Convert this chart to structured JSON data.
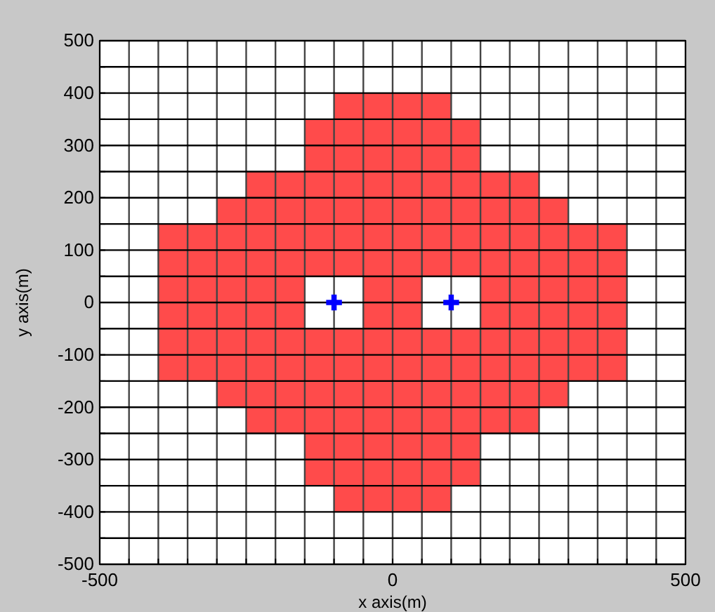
{
  "chart_data": {
    "type": "scatter",
    "xlabel": "x axis(m)",
    "ylabel": "y axis(m)",
    "xlim": [
      -500,
      500
    ],
    "ylim": [
      -500,
      500
    ],
    "xticks": [
      -500,
      {
        "value": -450,
        "label": null
      },
      {
        "value": -400,
        "label": null
      },
      {
        "value": -350,
        "label": null
      },
      {
        "value": -300,
        "label": null
      },
      {
        "value": -250,
        "label": null
      },
      {
        "value": -200,
        "label": null
      },
      {
        "value": -150,
        "label": null
      },
      {
        "value": -100,
        "label": null
      },
      {
        "value": -50,
        "label": null
      },
      0,
      {
        "value": 50,
        "label": null
      },
      {
        "value": 100,
        "label": null
      },
      {
        "value": 150,
        "label": null
      },
      {
        "value": 200,
        "label": null
      },
      {
        "value": 250,
        "label": null
      },
      {
        "value": 300,
        "label": null
      },
      {
        "value": 350,
        "label": null
      },
      {
        "value": 400,
        "label": null
      },
      {
        "value": 450,
        "label": null
      },
      500
    ],
    "yticks": [
      -500,
      {
        "value": -450,
        "label": null
      },
      -400,
      {
        "value": -350,
        "label": null
      },
      -300,
      {
        "value": -250,
        "label": null
      },
      -200,
      {
        "value": -150,
        "label": null
      },
      -100,
      {
        "value": -50,
        "label": null
      },
      0,
      {
        "value": 50,
        "label": null
      },
      100,
      {
        "value": 150,
        "label": null
      },
      200,
      {
        "value": 250,
        "label": null
      },
      300,
      {
        "value": 350,
        "label": null
      },
      400,
      {
        "value": 450,
        "label": null
      },
      500
    ],
    "grid": true,
    "series": [
      {
        "color": "#ff4b4b",
        "marker": "square",
        "x": [
          -75,
          -25,
          25,
          75,
          -125,
          -75,
          -25,
          25,
          75,
          125,
          -125,
          -75,
          -25,
          25,
          75,
          125,
          -225,
          -175,
          -125,
          -75,
          -25,
          25,
          75,
          125,
          175,
          225,
          -275,
          -225,
          -175,
          -125,
          -75,
          -25,
          25,
          75,
          125,
          175,
          225,
          275,
          -375,
          -325,
          -275,
          -225,
          -175,
          -125,
          -75,
          -25,
          25,
          75,
          125,
          175,
          225,
          275,
          325,
          375,
          -375,
          -325,
          -275,
          -225,
          -175,
          -125,
          -75,
          -25,
          25,
          75,
          125,
          175,
          225,
          275,
          325,
          375,
          -375,
          -325,
          -275,
          -225,
          -175,
          -25,
          25,
          175,
          225,
          275,
          325,
          375,
          -375,
          -325,
          -275,
          -225,
          -175,
          -25,
          25,
          175,
          225,
          275,
          325,
          375,
          -375,
          -325,
          -275,
          -225,
          -175,
          -125,
          -75,
          -25,
          25,
          75,
          125,
          175,
          225,
          275,
          325,
          375,
          -375,
          -325,
          -275,
          -225,
          -175,
          -125,
          -75,
          -25,
          25,
          75,
          125,
          175,
          225,
          275,
          325,
          375,
          -275,
          -225,
          -175,
          -125,
          -75,
          -25,
          25,
          75,
          125,
          175,
          225,
          275,
          -225,
          -175,
          -125,
          -75,
          -25,
          25,
          75,
          125,
          175,
          225,
          -125,
          -75,
          -25,
          25,
          75,
          125,
          -125,
          -75,
          -25,
          25,
          75,
          125,
          -75,
          -25,
          25,
          75
        ],
        "values": [
          375,
          375,
          375,
          375,
          325,
          325,
          325,
          325,
          325,
          325,
          275,
          275,
          275,
          275,
          275,
          275,
          225,
          225,
          225,
          225,
          225,
          225,
          225,
          225,
          225,
          225,
          175,
          175,
          175,
          175,
          175,
          175,
          175,
          175,
          175,
          175,
          175,
          175,
          125,
          125,
          125,
          125,
          125,
          125,
          125,
          125,
          125,
          125,
          125,
          125,
          125,
          125,
          125,
          125,
          75,
          75,
          75,
          75,
          75,
          75,
          75,
          75,
          75,
          75,
          75,
          75,
          75,
          75,
          75,
          75,
          25,
          25,
          25,
          25,
          25,
          25,
          25,
          25,
          25,
          25,
          25,
          25,
          -25,
          -25,
          -25,
          -25,
          -25,
          -25,
          -25,
          -25,
          -25,
          -25,
          -25,
          -25,
          -75,
          -75,
          -75,
          -75,
          -75,
          -75,
          -75,
          -75,
          -75,
          -75,
          -75,
          -75,
          -75,
          -75,
          -75,
          -75,
          -125,
          -125,
          -125,
          -125,
          -125,
          -125,
          -125,
          -125,
          -125,
          -125,
          -125,
          -125,
          -125,
          -125,
          -125,
          -125,
          -175,
          -175,
          -175,
          -175,
          -175,
          -175,
          -175,
          -175,
          -175,
          -175,
          -175,
          -175,
          -225,
          -225,
          -225,
          -225,
          -225,
          -225,
          -225,
          -225,
          -225,
          -225,
          -275,
          -275,
          -275,
          -275,
          -275,
          -275,
          -325,
          -325,
          -325,
          -325,
          -325,
          -325,
          -375,
          -375,
          -375,
          -375
        ]
      },
      {
        "color": "#0000ff",
        "marker": "cross",
        "x": [
          -100,
          100
        ],
        "values": [
          0,
          0
        ]
      }
    ]
  }
}
